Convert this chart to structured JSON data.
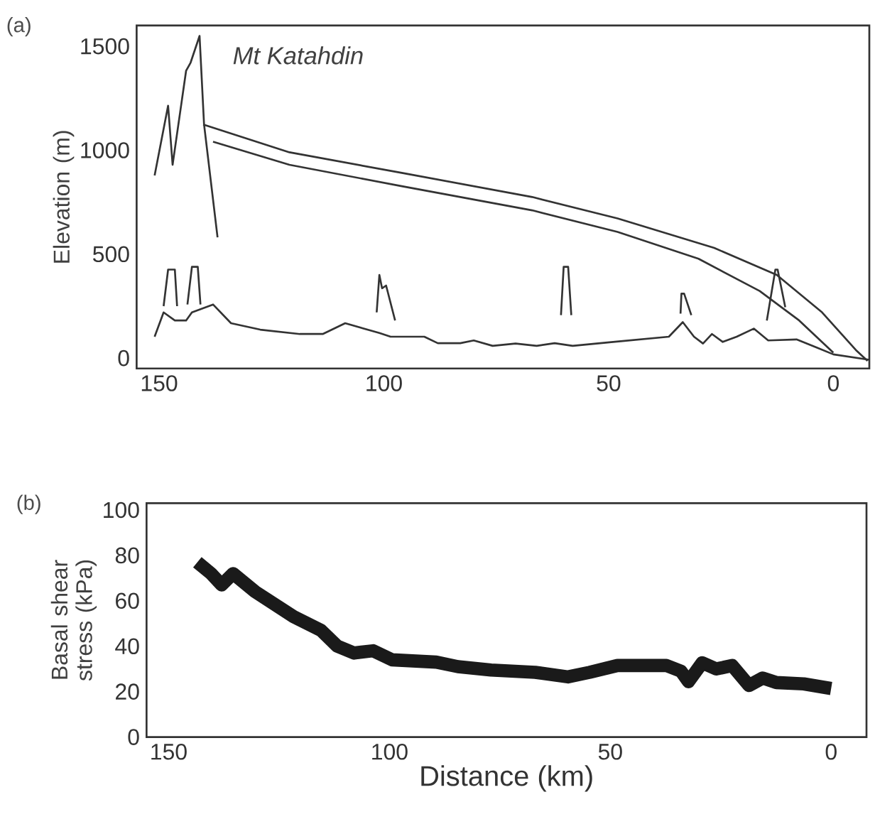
{
  "chart_data": [
    {
      "type": "line",
      "title": "(a)",
      "ylabel": "Elevation (m)",
      "xlim": [
        155,
        -8
      ],
      "ylim": [
        -50,
        1600
      ],
      "xticks": [
        150,
        100,
        50,
        0
      ],
      "yticks": [
        0,
        500,
        1000,
        1500
      ],
      "line_style": "solid",
      "annotations": [
        {
          "text": "Mt Katahdin",
          "x": 141,
          "y": 1550
        }
      ],
      "series": [
        {
          "color": "#333333",
          "x": [
            140.2,
            121,
            96,
            67,
            48,
            26.5,
            12.6,
            2.5,
            -5,
            -7.6
          ],
          "values": [
            1124,
            990,
            891,
            775,
            672,
            530,
            400,
            220,
            39,
            -13
          ]
        },
        {
          "color": "#333333",
          "x": [
            138,
            121,
            96,
            67,
            48,
            30,
            16.4,
            7.6,
            0
          ],
          "values": [
            1041,
            930,
            827,
            711,
            607,
            478,
            323,
            181,
            26
          ]
        },
        {
          "color": "#333333",
          "x": [
            151,
            148,
            147,
            144,
            143,
            141,
            140,
            137
          ],
          "values": [
            879,
            1214,
            930,
            1382,
            1421,
            1550,
            1124,
            581
          ]
        },
        {
          "color": "#333333",
          "x": [
            151,
            149,
            146.5,
            144,
            142.7,
            138,
            134,
            127.5,
            118.7,
            113.6,
            108.6,
            101,
            98.5,
            91,
            88,
            83,
            80,
            75.8,
            70.7,
            66,
            62,
            58,
            49,
            36.6,
            33.5,
            31,
            29,
            27,
            24.6,
            21.5,
            17.7,
            14.5,
            8.2,
            3.8,
            0,
            -8
          ],
          "values": [
            103,
            220,
            181,
            181,
            220,
            258,
            168,
            137,
            116,
            116,
            168,
            121,
            103,
            103,
            72,
            72,
            85,
            59,
            70,
            59,
            72,
            59,
            78,
            103,
            173,
            103,
            70,
            116,
            78,
            103,
            142,
            85,
            90,
            52,
            18,
            -8
          ]
        },
        {
          "color": "#333333",
          "x": [
            149,
            148,
            146.5,
            146,
            null,
            143.7,
            142.7,
            141.4,
            140.8,
            null,
            101.6,
            101,
            100.4,
            99.5,
            97.5,
            null,
            60.6,
            60,
            59,
            58.3,
            null,
            34,
            33.8,
            33.2,
            31.6,
            null,
            14.8,
            12.9,
            12.4,
            10.7
          ],
          "values": [
            250,
            426,
            426,
            250,
            null,
            258,
            439,
            439,
            258,
            null,
            220,
            400,
            336,
            349,
            181,
            null,
            207,
            439,
            439,
            207,
            null,
            214,
            310,
            310,
            207,
            null,
            181,
            426,
            426,
            245
          ]
        }
      ]
    },
    {
      "type": "line",
      "title": "(b)",
      "xlabel": "Distance (km)",
      "ylabel": "Basal shear stress (kPa)",
      "xlim": [
        155,
        -8
      ],
      "ylim": [
        0,
        103
      ],
      "xticks": [
        150,
        100,
        50,
        0
      ],
      "yticks": [
        0,
        20,
        40,
        60,
        80,
        100
      ],
      "line_style": "solid",
      "series": [
        {
          "color": "#1a1a1a",
          "x": [
            143.5,
            140.4,
            138,
            135.4,
            130.4,
            121.7,
            115.5,
            111.8,
            108,
            103.7,
            99.4,
            89.4,
            84.5,
            77,
            67,
            59.6,
            54.7,
            48.4,
            37.3,
            34,
            32.3,
            29.2,
            26,
            22.4,
            18.6,
            15.5,
            12.4,
            6.2,
            0
          ],
          "values": [
            77,
            72,
            67,
            72,
            64,
            53,
            47,
            40,
            37,
            38,
            34,
            33,
            31,
            29.5,
            28.5,
            26.5,
            28.5,
            31.5,
            31.5,
            29,
            24.4,
            32.7,
            30,
            31.5,
            22.7,
            26,
            24,
            23.4,
            21.4
          ]
        }
      ]
    }
  ]
}
